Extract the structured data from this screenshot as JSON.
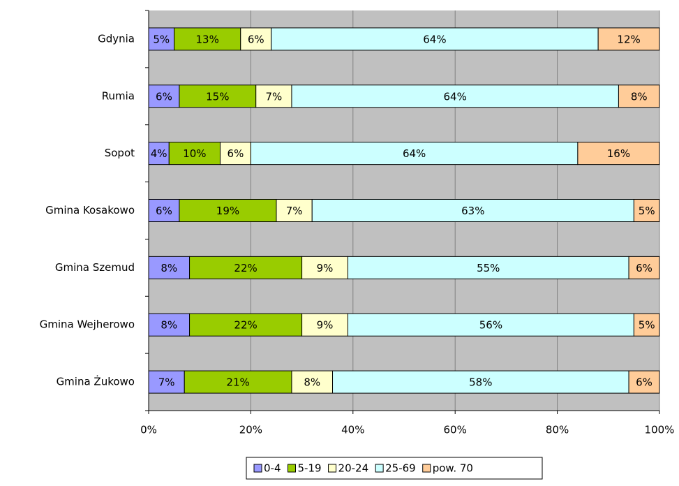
{
  "chart_data": {
    "type": "stacked_bar_horizontal",
    "categories": [
      "Gdynia",
      "Rumia",
      "Sopot",
      "Gmina Kosakowo",
      "Gmina Szemud",
      "Gmina Wejherowo",
      "Gmina Żukowo"
    ],
    "series": [
      {
        "name": "0-4",
        "color": "#9999ff",
        "values": [
          5,
          6,
          4,
          6,
          8,
          8,
          7
        ],
        "value_labels": [
          "5%",
          "6%",
          "4%",
          "6%",
          "8%",
          "8%",
          "7%"
        ]
      },
      {
        "name": "5-19",
        "color": "#99cc00",
        "values": [
          13,
          15,
          10,
          19,
          22,
          22,
          21
        ],
        "value_labels": [
          "13%",
          "15%",
          "10%",
          "19%",
          "22%",
          "22%",
          "21%"
        ]
      },
      {
        "name": "20-24",
        "color": "#ffffcc",
        "values": [
          6,
          7,
          6,
          7,
          9,
          9,
          8
        ],
        "value_labels": [
          "6%",
          "7%",
          "6%",
          "7%",
          "9%",
          "9%",
          "8%"
        ]
      },
      {
        "name": "25-69",
        "color": "#ccffff",
        "values": [
          64,
          64,
          64,
          63,
          55,
          56,
          58
        ],
        "value_labels": [
          "64%",
          "64%",
          "64%",
          "63%",
          "55%",
          "56%",
          "58%"
        ]
      },
      {
        "name": "pow. 70",
        "color": "#ffcc99",
        "values": [
          12,
          8,
          16,
          5,
          6,
          5,
          6
        ],
        "value_labels": [
          "12%",
          "8%",
          "16%",
          "5%",
          "6%",
          "5%",
          "6%"
        ]
      }
    ],
    "xlim": [
      0,
      100
    ],
    "xticks": [
      {
        "value": 0,
        "label": "0%"
      },
      {
        "value": 20,
        "label": "20%"
      },
      {
        "value": 40,
        "label": "40%"
      },
      {
        "value": 60,
        "label": "60%"
      },
      {
        "value": 80,
        "label": "80%"
      },
      {
        "value": 100,
        "label": "100%"
      }
    ],
    "grid": true,
    "legend": "bottom"
  }
}
